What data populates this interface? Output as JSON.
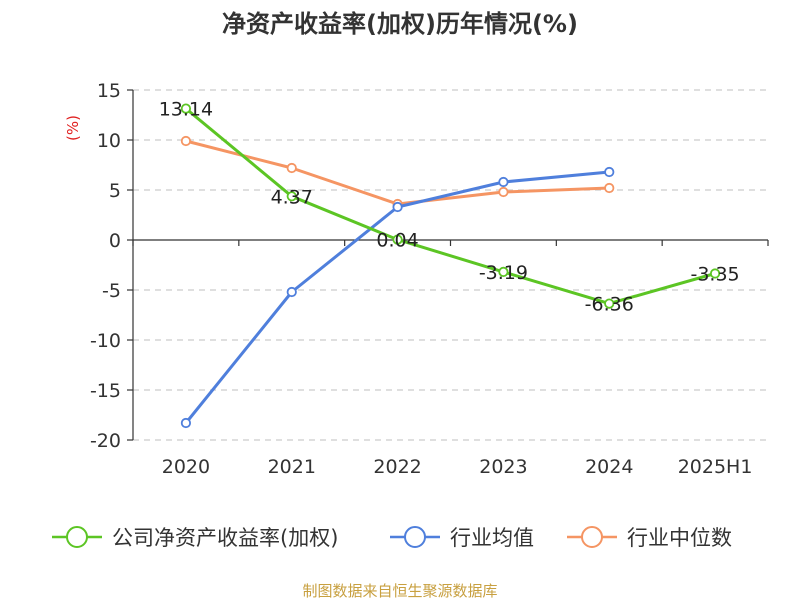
{
  "chart_data": {
    "type": "line",
    "title": "净资产收益率(加权)历年情况(%)",
    "ylabel": "(%)",
    "categories": [
      "2020",
      "2021",
      "2022",
      "2023",
      "2024",
      "2025H1"
    ],
    "ylim": [
      -20,
      15
    ],
    "yticks": [
      15,
      10,
      5,
      0,
      -5,
      -10,
      -15,
      -20
    ],
    "grid": true,
    "legend_position": "bottom",
    "series": [
      {
        "name": "公司净资产收益率(加权)",
        "color": "#5cc524",
        "values": [
          13.14,
          4.37,
          0.04,
          -3.19,
          -6.36,
          -3.35
        ],
        "labels": [
          "13.14",
          "4.37",
          "0.04",
          "-3.19",
          "-6.36",
          "-3.35"
        ]
      },
      {
        "name": "行业均值",
        "color": "#4f7fdc",
        "values": [
          -18.3,
          -5.2,
          3.3,
          5.8,
          6.8,
          null
        ]
      },
      {
        "name": "行业中位数",
        "color": "#f59563",
        "values": [
          9.9,
          7.2,
          3.6,
          4.8,
          5.2,
          null
        ]
      }
    ],
    "source": "制图数据来自恒生聚源数据库"
  }
}
